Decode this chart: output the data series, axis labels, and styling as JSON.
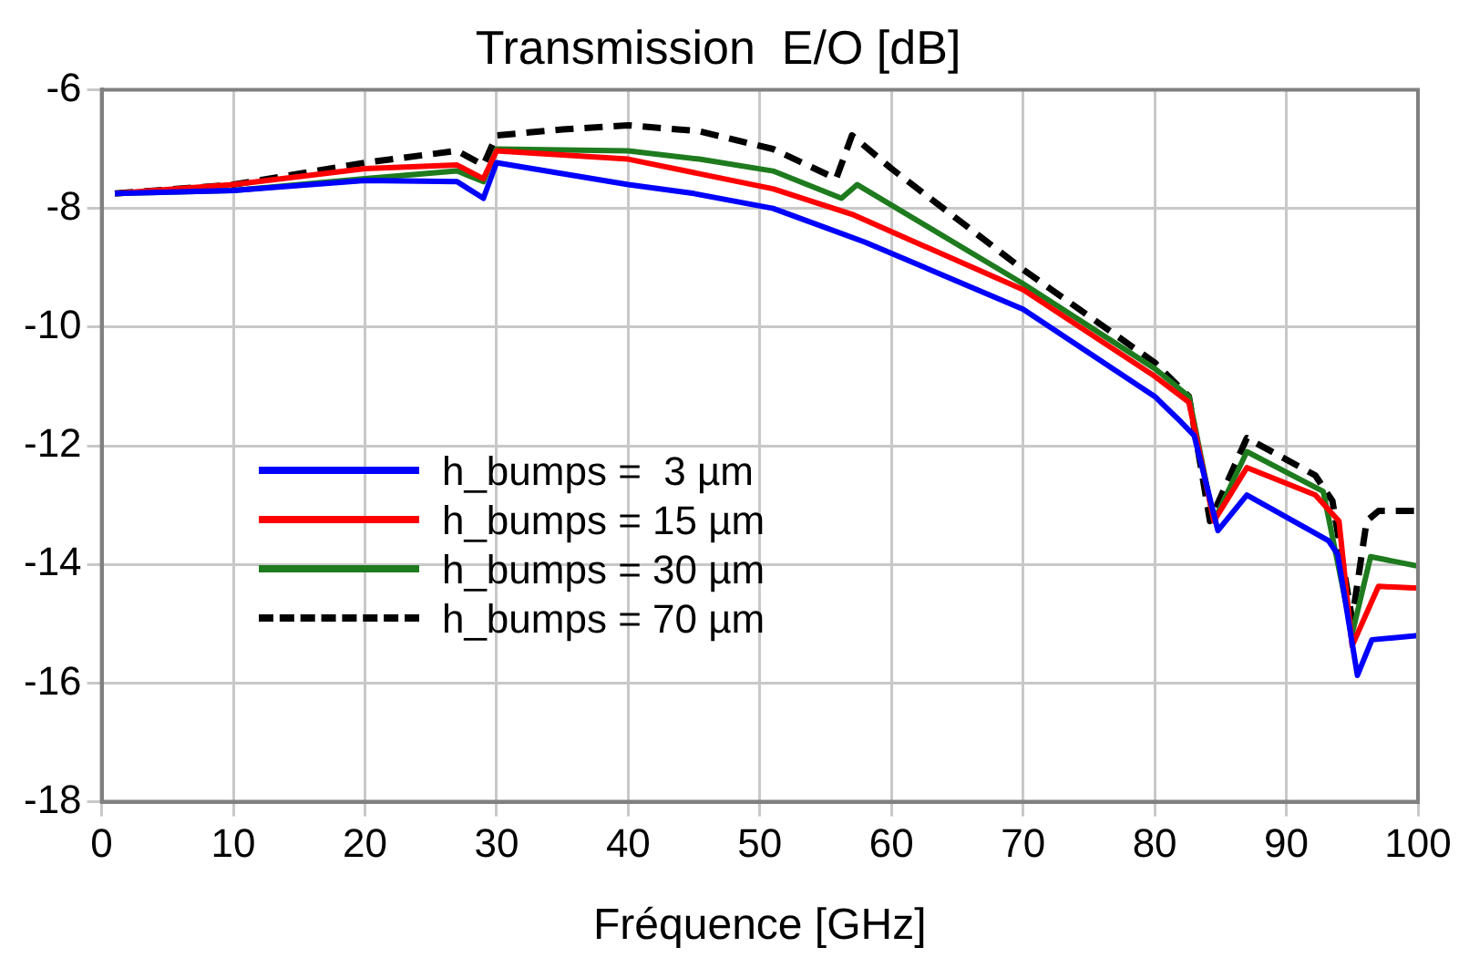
{
  "chart_data": {
    "type": "line",
    "title": "Transmission  E/O [dB]",
    "xlabel": "Fréquence [GHz]",
    "xlim": [
      0,
      100
    ],
    "xticks": [
      0,
      10,
      20,
      30,
      40,
      50,
      60,
      70,
      80,
      90,
      100
    ],
    "ylim": [
      -18,
      -6
    ],
    "yticks": [
      -18,
      -16,
      -14,
      -12,
      -10,
      -8,
      -6
    ],
    "grid": true,
    "legend": "bottom left",
    "marker": "none",
    "series": [
      {
        "name": "h_bumps =  3 µm",
        "color": "#0000ff",
        "line_style": "solid",
        "x": [
          1,
          10,
          20,
          27,
          29,
          30,
          40,
          45,
          51,
          58,
          70,
          80,
          82,
          83,
          84.8,
          87,
          93.2,
          93.9,
          95.4,
          96.5,
          100
        ],
        "values": [
          -7.75,
          -7.7,
          -7.53,
          -7.55,
          -7.83,
          -7.23,
          -7.6,
          -7.75,
          -8.0,
          -8.57,
          -9.7,
          -11.17,
          -11.6,
          -11.83,
          -13.43,
          -12.83,
          -13.6,
          -13.83,
          -15.87,
          -15.27,
          -15.2
        ]
      },
      {
        "name": "h_bumps = 15 µm",
        "color": "#ff0000",
        "line_style": "solid",
        "x": [
          1,
          10,
          20,
          27,
          29,
          30,
          40,
          51,
          57,
          70,
          80,
          82.6,
          84.5,
          87,
          92.2,
          94,
          95,
          97,
          100
        ],
        "values": [
          -7.75,
          -7.6,
          -7.33,
          -7.27,
          -7.5,
          -7.03,
          -7.17,
          -7.67,
          -8.1,
          -9.37,
          -10.83,
          -11.27,
          -13.27,
          -12.37,
          -12.83,
          -13.27,
          -15.37,
          -14.37,
          -14.4
        ]
      },
      {
        "name": "h_bumps = 30 µm",
        "color": "#1e7b1e",
        "line_style": "solid",
        "x": [
          1,
          10,
          20,
          27,
          29,
          30,
          40,
          45.4,
          51,
          56.2,
          57.4,
          70,
          80,
          82.6,
          84.5,
          87,
          92.8,
          95,
          96.4,
          100
        ],
        "values": [
          -7.75,
          -7.7,
          -7.5,
          -7.37,
          -7.55,
          -7.0,
          -7.03,
          -7.17,
          -7.37,
          -7.83,
          -7.6,
          -9.27,
          -10.7,
          -11.17,
          -13.27,
          -12.1,
          -12.77,
          -15.17,
          -13.87,
          -14.03
        ]
      },
      {
        "name": "h_bumps = 70 µm",
        "color": "#000000",
        "line_style": "dashed",
        "x": [
          1,
          10,
          20,
          27,
          29,
          30,
          35,
          40,
          45.4,
          51,
          55.8,
          57,
          60,
          70,
          80,
          82.6,
          84.2,
          87,
          92.2,
          93.5,
          95,
          96.1,
          97,
          100
        ],
        "values": [
          -7.75,
          -7.6,
          -7.23,
          -7.03,
          -7.27,
          -6.77,
          -6.67,
          -6.6,
          -6.7,
          -7.0,
          -7.5,
          -6.77,
          -7.33,
          -9.03,
          -10.6,
          -11.17,
          -13.27,
          -11.87,
          -12.5,
          -12.93,
          -14.93,
          -13.27,
          -13.1,
          -13.1
        ]
      }
    ]
  }
}
